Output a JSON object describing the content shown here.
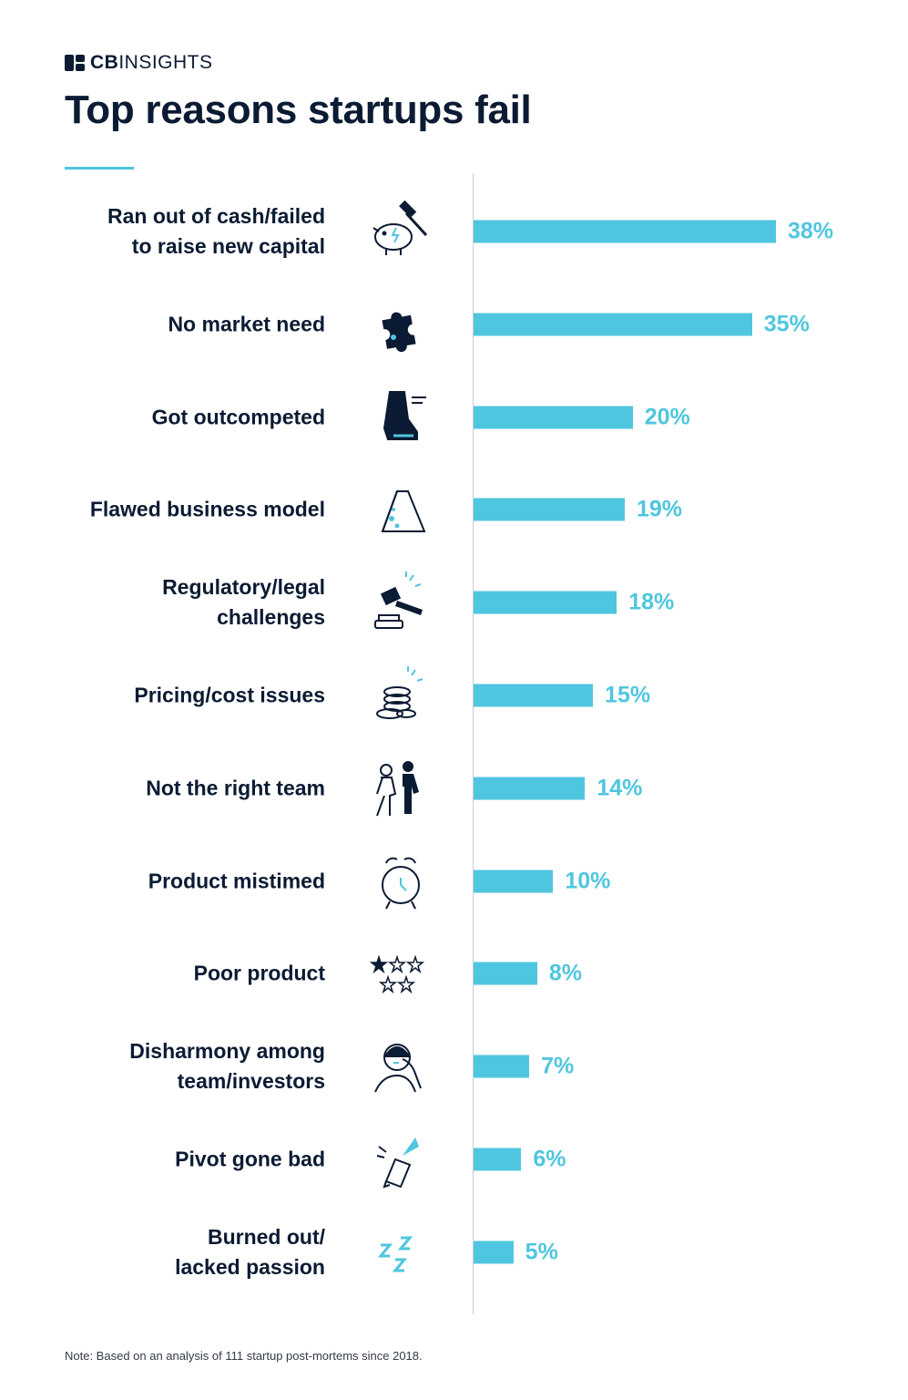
{
  "brand": {
    "bold": "CB",
    "light": "INSIGHTS"
  },
  "title": "Top reasons startups fail",
  "note": "Note: Based on an analysis of 111 startup post-mortems since 2018.",
  "colors": {
    "bar": "#4fc6df",
    "text": "#0b1b33",
    "accent": "#4fc6df"
  },
  "chart_data": {
    "type": "bar",
    "orientation": "horizontal",
    "title": "Top reasons startups fail",
    "unit": "%",
    "xlim": [
      0,
      38
    ],
    "grid": false,
    "categories": [
      [
        "Ran out of cash/failed",
        "to raise new capital"
      ],
      [
        "No market need"
      ],
      [
        "Got outcompeted"
      ],
      [
        "Flawed business model"
      ],
      [
        "Regulatory/legal",
        "challenges"
      ],
      [
        "Pricing/cost issues"
      ],
      [
        "Not the right team"
      ],
      [
        "Product mistimed"
      ],
      [
        "Poor product"
      ],
      [
        "Disharmony among",
        "team/investors"
      ],
      [
        "Pivot gone bad"
      ],
      [
        "Burned out/",
        "lacked passion"
      ]
    ],
    "values": [
      38,
      35,
      20,
      19,
      18,
      15,
      14,
      10,
      8,
      7,
      6,
      5
    ],
    "value_labels": [
      "38%",
      "35%",
      "20%",
      "19%",
      "18%",
      "15%",
      "14%",
      "10%",
      "8%",
      "7%",
      "6%",
      "5%"
    ],
    "icons": [
      "piggy-bank-hammer-icon",
      "puzzle-piece-icon",
      "running-shoe-icon",
      "cheese-wedge-icon",
      "gavel-icon",
      "coin-stack-icon",
      "people-team-icon",
      "alarm-clock-icon",
      "star-rating-icon",
      "frustrated-person-icon",
      "broken-pencil-icon",
      "sleep-zzz-icon"
    ]
  }
}
